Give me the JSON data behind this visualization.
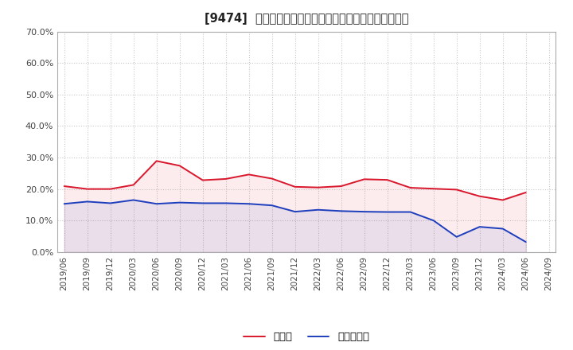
{
  "title": "[9474]  現頲金、有利子負債の総資産に対する比率の推移",
  "x_labels": [
    "2019/06",
    "2019/09",
    "2019/12",
    "2020/03",
    "2020/06",
    "2020/09",
    "2020/12",
    "2021/03",
    "2021/06",
    "2021/09",
    "2021/12",
    "2022/03",
    "2022/06",
    "2022/09",
    "2022/12",
    "2023/03",
    "2023/06",
    "2023/09",
    "2023/12",
    "2024/03",
    "2024/06",
    "2024/09"
  ],
  "cash": [
    0.209,
    0.2,
    0.2,
    0.213,
    0.289,
    0.274,
    0.228,
    0.232,
    0.246,
    0.233,
    0.207,
    0.205,
    0.209,
    0.231,
    0.229,
    0.204,
    0.201,
    0.198,
    0.177,
    0.165,
    0.189,
    null
  ],
  "interest_bearing_debt": [
    0.153,
    0.16,
    0.155,
    0.165,
    0.153,
    0.157,
    0.155,
    0.155,
    0.153,
    0.148,
    0.128,
    0.134,
    0.13,
    0.128,
    0.127,
    0.127,
    0.1,
    0.048,
    0.08,
    0.074,
    0.032,
    null
  ],
  "cash_color": "#d9182d",
  "debt_color": "#1e3fbd",
  "background_color": "#ffffff",
  "plot_bg_color": "#ffffff",
  "grid_color": "#c8c8c8",
  "ylim": [
    0.0,
    0.7
  ],
  "yticks": [
    0.0,
    0.1,
    0.2,
    0.3,
    0.4,
    0.5,
    0.6,
    0.7
  ],
  "legend_cash": "現頲金",
  "legend_debt": "有利子負債"
}
